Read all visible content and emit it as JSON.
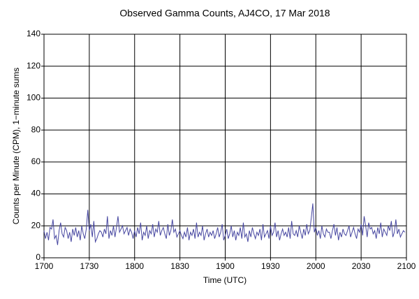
{
  "chart_data": {
    "type": "line",
    "title": "Observed Gamma Counts, AJ4CO, 17 Mar 2018",
    "xlabel": "Time (UTC)",
    "ylabel": "Counts per Minute (CPM), 1−minute sums",
    "xlim": [
      1020,
      1260
    ],
    "xticks": [
      {
        "value": 1020,
        "label": "1700"
      },
      {
        "value": 1050,
        "label": "1730"
      },
      {
        "value": 1080,
        "label": "1800"
      },
      {
        "value": 1110,
        "label": "1830"
      },
      {
        "value": 1140,
        "label": "1900"
      },
      {
        "value": 1170,
        "label": "1930"
      },
      {
        "value": 1200,
        "label": "2000"
      },
      {
        "value": 1230,
        "label": "2030"
      },
      {
        "value": 1260,
        "label": "2100"
      }
    ],
    "ylim": [
      0,
      140
    ],
    "yticks": [
      0,
      20,
      40,
      60,
      80,
      100,
      120,
      140
    ],
    "grid": true,
    "color": "#4646a0",
    "x": [
      1020,
      1021,
      1022,
      1023,
      1024,
      1025,
      1026,
      1027,
      1028,
      1029,
      1030,
      1031,
      1032,
      1033,
      1034,
      1035,
      1036,
      1037,
      1038,
      1039,
      1040,
      1041,
      1042,
      1043,
      1044,
      1045,
      1046,
      1047,
      1048,
      1049,
      1050,
      1051,
      1052,
      1053,
      1054,
      1055,
      1056,
      1057,
      1058,
      1059,
      1060,
      1061,
      1062,
      1063,
      1064,
      1065,
      1066,
      1067,
      1068,
      1069,
      1070,
      1071,
      1072,
      1073,
      1074,
      1075,
      1076,
      1077,
      1078,
      1079,
      1080,
      1081,
      1082,
      1083,
      1084,
      1085,
      1086,
      1087,
      1088,
      1089,
      1090,
      1091,
      1092,
      1093,
      1094,
      1095,
      1096,
      1097,
      1098,
      1099,
      1100,
      1101,
      1102,
      1103,
      1104,
      1105,
      1106,
      1107,
      1108,
      1109,
      1110,
      1111,
      1112,
      1113,
      1114,
      1115,
      1116,
      1117,
      1118,
      1119,
      1120,
      1121,
      1122,
      1123,
      1124,
      1125,
      1126,
      1127,
      1128,
      1129,
      1130,
      1131,
      1132,
      1133,
      1134,
      1135,
      1136,
      1137,
      1138,
      1139,
      1140,
      1141,
      1142,
      1143,
      1144,
      1145,
      1146,
      1147,
      1148,
      1149,
      1150,
      1151,
      1152,
      1153,
      1154,
      1155,
      1156,
      1157,
      1158,
      1159,
      1160,
      1161,
      1162,
      1163,
      1164,
      1165,
      1166,
      1167,
      1168,
      1169,
      1170,
      1171,
      1172,
      1173,
      1174,
      1175,
      1176,
      1177,
      1178,
      1179,
      1180,
      1181,
      1182,
      1183,
      1184,
      1185,
      1186,
      1187,
      1188,
      1189,
      1190,
      1191,
      1192,
      1193,
      1194,
      1195,
      1196,
      1197,
      1198,
      1199,
      1200,
      1201,
      1202,
      1203,
      1204,
      1205,
      1206,
      1207,
      1208,
      1209,
      1210,
      1211,
      1212,
      1213,
      1214,
      1215,
      1216,
      1217,
      1218,
      1219,
      1220,
      1221,
      1222,
      1223,
      1224,
      1225,
      1226,
      1227,
      1228,
      1229,
      1230,
      1231,
      1232,
      1233,
      1234,
      1235,
      1236,
      1237,
      1238,
      1239,
      1240,
      1241,
      1242,
      1243,
      1244,
      1245,
      1246,
      1247,
      1248,
      1249,
      1250,
      1251,
      1252,
      1253,
      1254,
      1255,
      1256,
      1257,
      1258,
      1259
    ],
    "values": [
      17,
      12,
      16,
      11,
      19,
      18,
      24,
      12,
      14,
      8,
      17,
      22,
      15,
      13,
      19,
      17,
      12,
      16,
      10,
      18,
      14,
      19,
      13,
      17,
      11,
      20,
      15,
      12,
      18,
      30,
      17,
      21,
      13,
      23,
      10,
      12,
      15,
      17,
      16,
      13,
      18,
      15,
      26,
      12,
      17,
      14,
      20,
      13,
      19,
      26,
      16,
      18,
      20,
      15,
      17,
      19,
      14,
      18,
      16,
      12,
      17,
      13,
      19,
      15,
      22,
      11,
      16,
      14,
      20,
      12,
      17,
      15,
      21,
      13,
      18,
      16,
      23,
      14,
      17,
      19,
      15,
      12,
      21,
      14,
      17,
      24,
      16,
      18,
      13,
      15,
      17,
      14,
      12,
      16,
      13,
      19,
      11,
      16,
      14,
      18,
      12,
      22,
      13,
      16,
      14,
      20,
      11,
      15,
      18,
      13,
      16,
      14,
      17,
      12,
      15,
      19,
      13,
      16,
      21,
      11,
      14,
      18,
      12,
      15,
      20,
      13,
      17,
      11,
      16,
      14,
      19,
      12,
      22,
      13,
      15,
      10,
      17,
      13,
      19,
      15,
      12,
      16,
      14,
      18,
      11,
      21,
      13,
      15,
      17,
      12,
      20,
      14,
      16,
      22,
      13,
      17,
      11,
      15,
      18,
      14,
      16,
      13,
      19,
      12,
      23,
      15,
      14,
      17,
      13,
      20,
      16,
      12,
      18,
      14,
      21,
      15,
      17,
      25,
      34,
      16,
      19,
      14,
      17,
      12,
      20,
      15,
      13,
      18,
      16,
      16,
      12,
      17,
      21,
      14,
      19,
      11,
      16,
      13,
      18,
      15,
      14,
      17,
      20,
      13,
      16,
      19,
      15,
      12,
      18,
      16,
      21,
      14,
      26,
      20,
      13,
      22,
      18,
      19,
      15,
      17,
      12,
      19,
      15,
      22,
      13,
      18,
      16,
      14,
      20,
      17,
      23,
      13,
      16,
      24,
      15,
      18,
      13,
      15,
      17,
      16
    ]
  }
}
